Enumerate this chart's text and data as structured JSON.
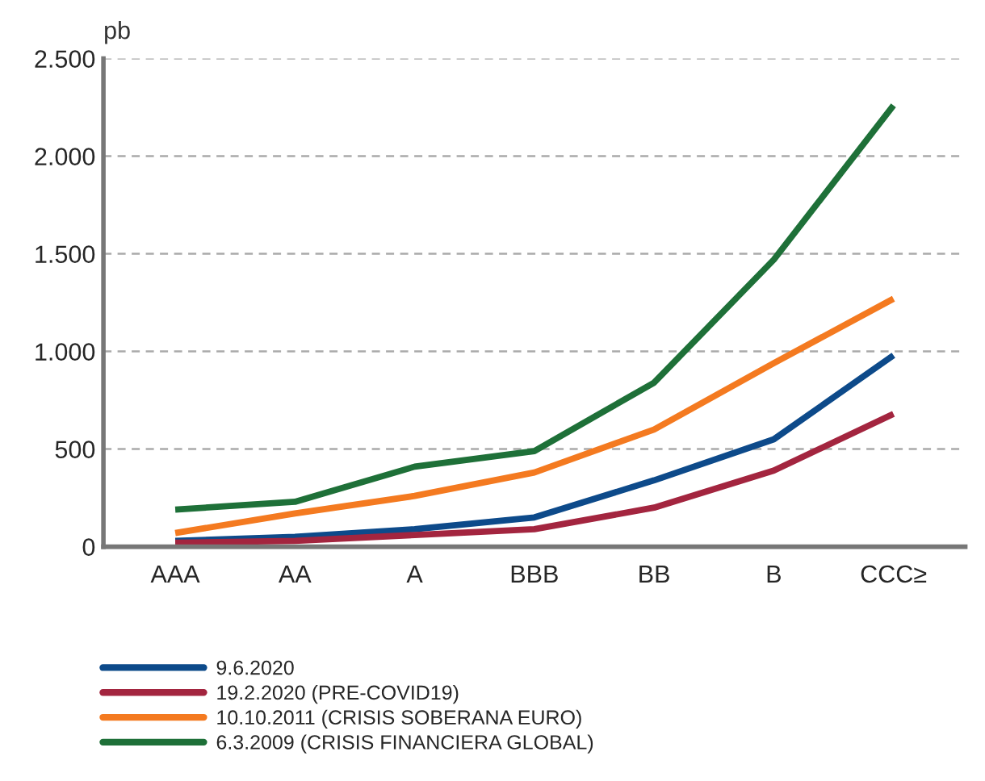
{
  "chart_data": {
    "type": "line",
    "ylabel": "pb",
    "categories": [
      "AAA",
      "AA",
      "A",
      "BBB",
      "BB",
      "B",
      "CCC≥"
    ],
    "series": [
      {
        "name": "9.6.2020",
        "color": "#0d4a8a",
        "values": [
          30,
          50,
          90,
          150,
          340,
          550,
          980
        ]
      },
      {
        "name": "19.2.2020 (PRE-COVID19)",
        "color": "#a3253f",
        "values": [
          20,
          30,
          60,
          90,
          200,
          390,
          680
        ]
      },
      {
        "name": "10.10.2011 (CRISIS SOBERANA EURO)",
        "color": "#f47a20",
        "values": [
          70,
          170,
          260,
          380,
          600,
          940,
          1270
        ]
      },
      {
        "name": "6.3.2009 (CRISIS FINANCIERA GLOBAL)",
        "color": "#1e7038",
        "values": [
          190,
          230,
          410,
          490,
          840,
          1470,
          2260
        ]
      }
    ],
    "ylim": [
      0,
      2500
    ],
    "yticks": [
      {
        "value": 0,
        "label": "0"
      },
      {
        "value": 500,
        "label": "500"
      },
      {
        "value": 1000,
        "label": "1.000"
      },
      {
        "value": 1500,
        "label": "1.500"
      },
      {
        "value": 2000,
        "label": "2.000"
      },
      {
        "value": 2500,
        "label": "2.500"
      }
    ],
    "grid": "y",
    "legend": "bottom left",
    "marker": "none",
    "line_style": "solid"
  }
}
